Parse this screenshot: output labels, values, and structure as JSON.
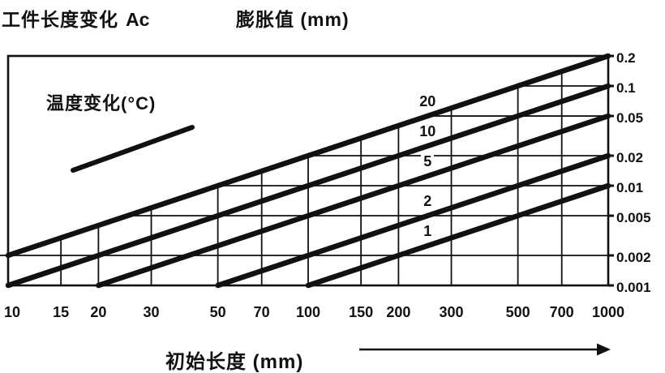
{
  "page": {
    "background": "#ffffff",
    "ink": "#111111"
  },
  "header": {
    "title_left": "工件长度变化",
    "title_left_symbol": "Ac",
    "title_right": "膨胀值 (mm)"
  },
  "legend": {
    "label": "温度变化(°C)"
  },
  "x_axis_title": "初始长度 (mm)",
  "chart_data": {
    "type": "line",
    "title": "工件长度变化 Ac — 膨胀值 (mm)",
    "xlabel": "初始长度 (mm)",
    "ylabel": "膨胀值 (mm)",
    "x_scale": "log",
    "y_scale": "log",
    "x_range": [
      10,
      1000
    ],
    "y_range": [
      0.001,
      0.2
    ],
    "x_ticks": [
      10,
      15,
      20,
      30,
      50,
      70,
      100,
      150,
      200,
      300,
      500,
      700,
      1000
    ],
    "y_ticks": [
      0.2,
      0.1,
      0.05,
      0.02,
      0.01,
      0.005,
      0.002,
      0.001
    ],
    "grid": true,
    "legend_title": "温度变化(°C)",
    "legend_position": "top-left",
    "expansion_per_mm_per_c": 1e-05,
    "series": [
      {
        "name": "20",
        "delta_t_c": 20,
        "points": [
          [
            10,
            0.002
          ],
          [
            1000,
            0.2
          ]
        ]
      },
      {
        "name": "10",
        "delta_t_c": 10,
        "points": [
          [
            10,
            0.001
          ],
          [
            1000,
            0.1
          ]
        ]
      },
      {
        "name": "5",
        "delta_t_c": 5,
        "points": [
          [
            20,
            0.001
          ],
          [
            1000,
            0.05
          ]
        ]
      },
      {
        "name": "2",
        "delta_t_c": 2,
        "points": [
          [
            50,
            0.001
          ],
          [
            1000,
            0.02
          ]
        ]
      },
      {
        "name": "1",
        "delta_t_c": 1,
        "points": [
          [
            100,
            0.001
          ],
          [
            1000,
            0.01
          ]
        ]
      }
    ]
  }
}
